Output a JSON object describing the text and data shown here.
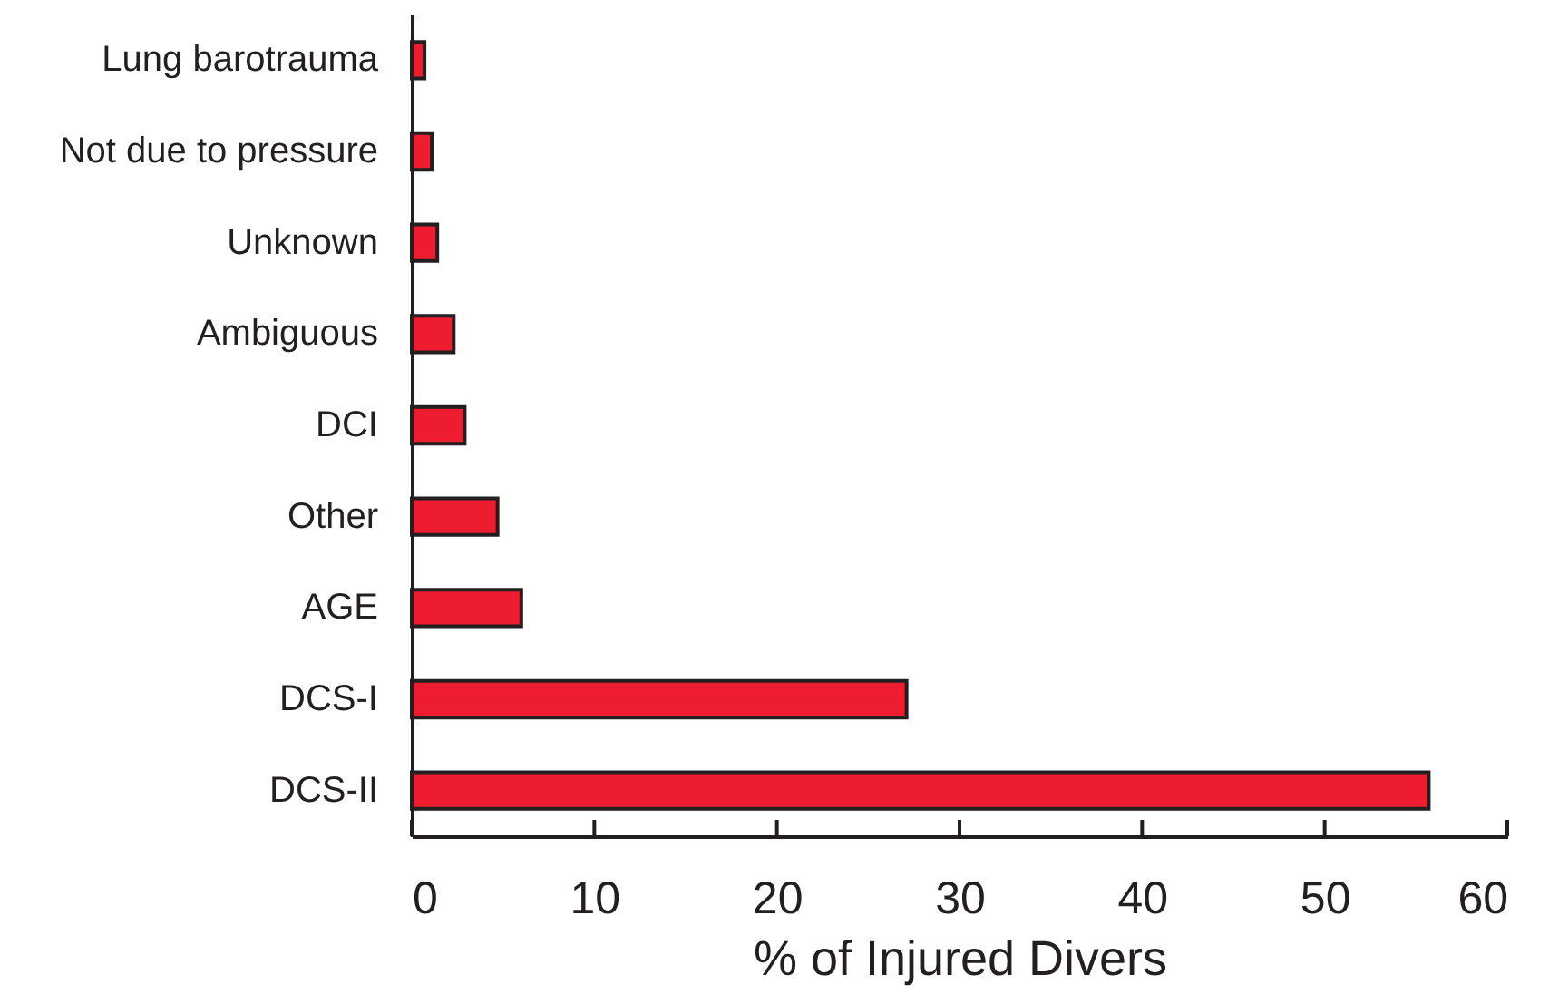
{
  "chart_data": {
    "type": "bar",
    "orientation": "horizontal",
    "categories": [
      "Lung barotrauma",
      "Not due to pressure",
      "Unknown",
      "Ambiguous",
      "DCI",
      "Other",
      "AGE",
      "DCS-I",
      "DCS-II"
    ],
    "values": [
      0.7,
      1.1,
      1.4,
      2.3,
      2.9,
      4.7,
      6.0,
      27.1,
      55.7
    ],
    "color": "#ed1c2e",
    "xlabel": "% of Injured Divers",
    "xlim": [
      0,
      60
    ],
    "xticks": [
      0,
      10,
      20,
      30,
      40,
      50,
      60
    ]
  }
}
